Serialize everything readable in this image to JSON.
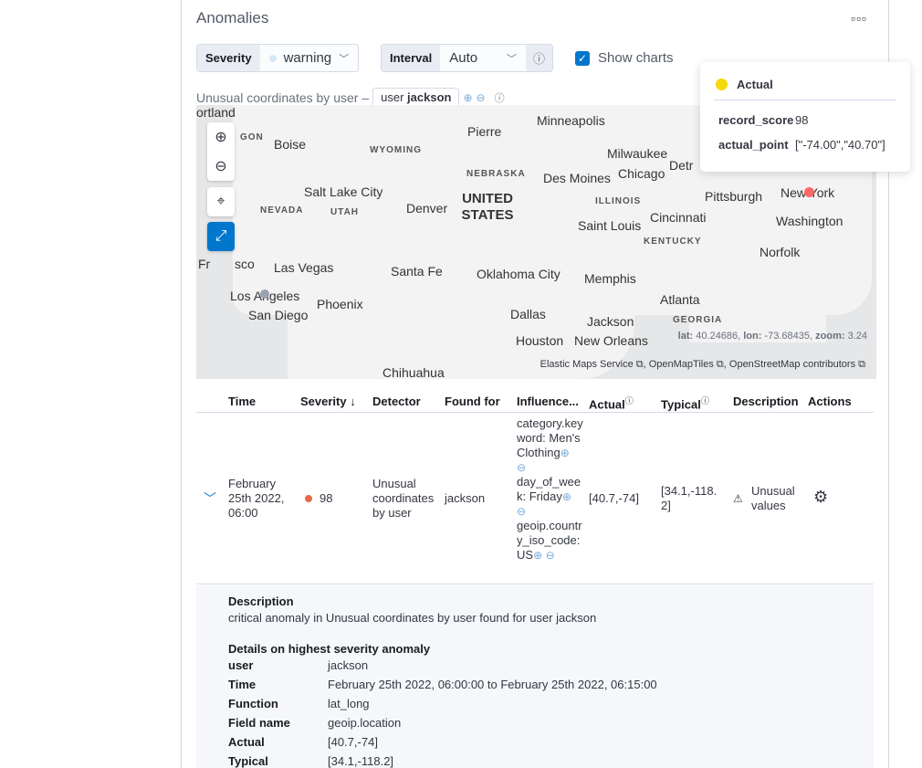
{
  "panel": {
    "title": "Anomalies",
    "more_icon": "ellipsis-icon"
  },
  "controls": {
    "severity_label": "Severity",
    "severity_value": "warning",
    "severity_color": "#d6e9f8",
    "interval_label": "Interval",
    "interval_value": "Auto",
    "show_charts_label": "Show charts",
    "show_charts_checked": true
  },
  "chart_title": {
    "text": "Unusual coordinates by user –",
    "entity_field": "user",
    "entity_value": "jackson"
  },
  "map": {
    "cities": [
      "ortland",
      "Boise",
      "Pierre",
      "Minneapolis",
      "Milwaukee",
      "Chicago",
      "Detr",
      "Des Moines",
      "Salt Lake City",
      "Denver",
      "Pittsburgh",
      "New York",
      "Washington",
      "Cincinnati",
      "Saint Louis",
      "Fr",
      "sco",
      "Las Vegas",
      "Santa Fe",
      "Oklahoma City",
      "Memphis",
      "Norfolk",
      "Los Angeles",
      "Phoenix",
      "San Diego",
      "Atlanta",
      "Dallas",
      "Jackson",
      "Houston",
      "New Orleans",
      "Chihuahua"
    ],
    "states": [
      "GON",
      "WYOMING",
      "NEBRASKA",
      "ILLINOIS",
      "NEVADA",
      "UTAH",
      "KENTUCKY",
      "GEORGIA"
    ],
    "country": "UNITED STATES",
    "coords": {
      "lat_label": "lat:",
      "lat": "40.24686",
      "lon_label": "lon:",
      "lon": "-73.68435",
      "zoom_label": "zoom:",
      "zoom": "3.24"
    },
    "attribution": [
      "Elastic Maps Service",
      "OpenMapTiles",
      "OpenStreetMap contributors"
    ],
    "actual_color": "#f66",
    "typical_color": "#98a2b3"
  },
  "tooltip": {
    "series": "Actual",
    "series_color": "#f5d90a",
    "rows": [
      {
        "key": "record_score",
        "value": "98"
      },
      {
        "key": "actual_point",
        "value": "[\"-74.00\",\"40.70\"]"
      }
    ]
  },
  "table": {
    "headers": [
      "Time",
      "Severity",
      "Detector",
      "Found for",
      "Influence...",
      "Actual",
      "Typical",
      "Description",
      "Actions"
    ],
    "row": {
      "time": "February 25th 2022, 06:00",
      "severity": "98",
      "severity_color": "#e7664c",
      "detector": "Unusual coordinates by user",
      "found_for": "jackson",
      "influencers": [
        "category.keyword: Men's Clothing",
        "day_of_week: Friday",
        "geoip.country_iso_code: US"
      ],
      "actual": "[40.7,-74]",
      "typical": "[34.1,-118.2]",
      "description": "Unusual values"
    }
  },
  "details": {
    "description_label": "Description",
    "description": "critical anomaly in Unusual coordinates by user found for user jackson",
    "highest_label": "Details on highest severity anomaly",
    "fields": [
      {
        "k": "user",
        "v": "jackson"
      },
      {
        "k": "Time",
        "v": "February 25th 2022, 06:00:00 to February 25th 2022, 06:15:00"
      },
      {
        "k": "Function",
        "v": "lat_long"
      },
      {
        "k": "Field name",
        "v": "geoip.location"
      },
      {
        "k": "Actual",
        "v": "[40.7,-74]"
      },
      {
        "k": "Typical",
        "v": "[34.1,-118.2]"
      }
    ]
  }
}
